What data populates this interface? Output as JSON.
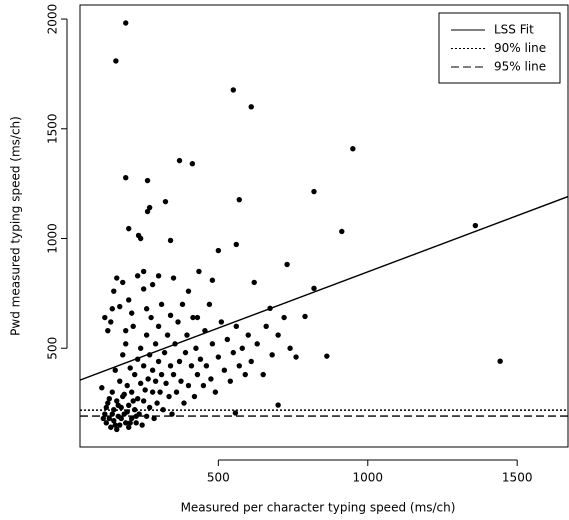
{
  "chart_data": {
    "type": "scatter",
    "xlabel": "Measured per character typing speed (ms/ch)",
    "ylabel": "Pwd measured typing speed (ms/ch)",
    "color": "#000000",
    "xlim": [
      37,
      1670
    ],
    "ylim": [
      50,
      2064
    ],
    "xticks": [
      500,
      1000,
      1500
    ],
    "yticks": [
      500,
      1000,
      1500,
      2000
    ],
    "legend": "top-right",
    "x": [
      110,
      120,
      125,
      130,
      135,
      140,
      145,
      150,
      150,
      155,
      160,
      160,
      165,
      170,
      170,
      175,
      180,
      180,
      185,
      190,
      190,
      195,
      200,
      200,
      205,
      210,
      210,
      215,
      220,
      220,
      225,
      230,
      230,
      235,
      240,
      240,
      245,
      250,
      250,
      255,
      260,
      260,
      265,
      270,
      270,
      275,
      280,
      280,
      285,
      290,
      290,
      295,
      300,
      300,
      305,
      310,
      310,
      315,
      320,
      325,
      330,
      335,
      340,
      340,
      345,
      350,
      355,
      360,
      365,
      370,
      375,
      380,
      385,
      390,
      395,
      400,
      400,
      410,
      415,
      420,
      425,
      430,
      435,
      440,
      450,
      455,
      460,
      470,
      475,
      480,
      490,
      500,
      510,
      520,
      530,
      540,
      550,
      560,
      570,
      580,
      590,
      600,
      610,
      620,
      630,
      650,
      660,
      680,
      700,
      720,
      740,
      760,
      115,
      125,
      135,
      145,
      155,
      165,
      175,
      185,
      195,
      205,
      215,
      225,
      140,
      150,
      160,
      170,
      180,
      200,
      230,
      145,
      190,
      250,
      260,
      210,
      120,
      130,
      250,
      280,
      300,
      350,
      480,
      430,
      190,
      157,
      550,
      610,
      950,
      370,
      413,
      190,
      263,
      820,
      323,
      570,
      270,
      263,
      913,
      1360,
      200,
      233,
      240,
      500,
      340,
      560,
      1443,
      863,
      700,
      557,
      820,
      730,
      790,
      673
    ],
    "values": [
      320,
      200,
      160,
      250,
      180,
      140,
      300,
      220,
      170,
      400,
      130,
      260,
      190,
      350,
      150,
      230,
      470,
      280,
      200,
      160,
      520,
      330,
      240,
      140,
      410,
      180,
      300,
      600,
      220,
      380,
      160,
      450,
      270,
      200,
      340,
      500,
      150,
      260,
      420,
      310,
      190,
      560,
      360,
      230,
      470,
      640,
      300,
      400,
      180,
      520,
      350,
      250,
      600,
      440,
      300,
      380,
      700,
      220,
      480,
      340,
      560,
      280,
      650,
      420,
      200,
      380,
      520,
      300,
      620,
      440,
      350,
      700,
      250,
      480,
      560,
      330,
      760,
      420,
      640,
      280,
      500,
      380,
      850,
      450,
      330,
      580,
      420,
      700,
      360,
      520,
      300,
      460,
      620,
      400,
      540,
      350,
      480,
      600,
      420,
      500,
      380,
      560,
      440,
      800,
      520,
      380,
      600,
      470,
      560,
      640,
      500,
      460,
      180,
      230,
      270,
      200,
      150,
      240,
      180,
      290,
      210,
      160,
      260,
      190,
      620,
      760,
      820,
      690,
      800,
      720,
      830,
      680,
      580,
      770,
      680,
      660,
      640,
      580,
      850,
      790,
      830,
      820,
      810,
      640,
      1982,
      1809,
      1677,
      1600,
      1409,
      1355,
      1341,
      1277,
      1264,
      1214,
      1168,
      1177,
      1141,
      1123,
      1032,
      1059,
      1045,
      1014,
      1000,
      945,
      991,
      973,
      441,
      464,
      241,
      205,
      773,
      882,
      645,
      682
    ],
    "lines": [
      {
        "name": "LSS Fit",
        "dash": "solid",
        "x": [
          37,
          1670
        ],
        "values": [
          355,
          1191
        ]
      },
      {
        "name": "90% line",
        "dash": "dotted",
        "x": [
          37,
          1670
        ],
        "values": [
          218,
          218
        ]
      },
      {
        "name": "95% line",
        "dash": "dashed",
        "x": [
          37,
          1670
        ],
        "values": [
          191,
          191
        ]
      }
    ]
  }
}
